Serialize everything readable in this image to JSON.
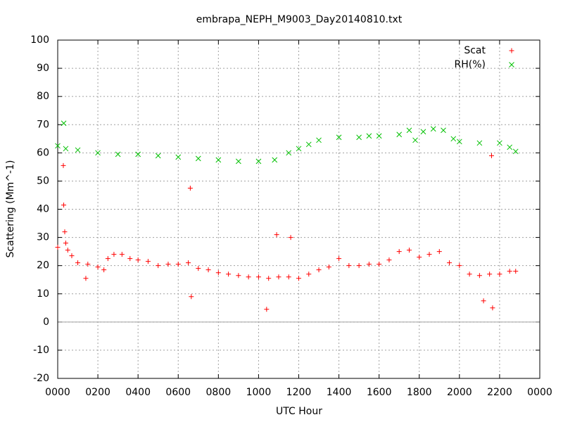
{
  "chart_data": {
    "type": "scatter",
    "title": "embrapa_NEPH_M9003_Day20140810.txt",
    "xlabel": "UTC Hour",
    "ylabel": "Scattering (Mm^-1)",
    "xlim": [
      0,
      24
    ],
    "xticks": [
      {
        "value": 0,
        "label": "0000"
      },
      {
        "value": 2,
        "label": "0200"
      },
      {
        "value": 4,
        "label": "0400"
      },
      {
        "value": 6,
        "label": "0600"
      },
      {
        "value": 8,
        "label": "0800"
      },
      {
        "value": 10,
        "label": "1000"
      },
      {
        "value": 12,
        "label": "1200"
      },
      {
        "value": 14,
        "label": "1400"
      },
      {
        "value": 16,
        "label": "1600"
      },
      {
        "value": 18,
        "label": "1800"
      },
      {
        "value": 20,
        "label": "2000"
      },
      {
        "value": 22,
        "label": "2200"
      },
      {
        "value": 24,
        "label": "0000"
      }
    ],
    "ylim": [
      -20,
      100
    ],
    "yticks": [
      -20,
      -10,
      0,
      10,
      20,
      30,
      40,
      50,
      60,
      70,
      80,
      90,
      100
    ],
    "grid": true,
    "zeroaxis": true,
    "legend": "top-right",
    "series": [
      {
        "name": "Scat",
        "color": "#ff0000",
        "marker": "plus",
        "x": [
          0,
          0.28,
          0.3,
          0.35,
          0.4,
          0.5,
          0.7,
          1,
          1.4,
          1.5,
          2,
          2.3,
          2.5,
          2.8,
          3.2,
          3.6,
          4,
          4.5,
          5,
          5.5,
          6,
          6.5,
          6.6,
          6.65,
          7,
          7.5,
          8,
          8.5,
          9,
          9.5,
          10,
          10.4,
          10.5,
          10.9,
          11,
          11.5,
          11.6,
          12,
          12.5,
          13,
          13.5,
          14,
          14.5,
          15,
          15.5,
          16,
          16.5,
          17,
          17.5,
          18,
          18.5,
          19,
          19.5,
          20,
          20.5,
          21,
          21.2,
          21.5,
          21.6,
          21.65,
          22,
          22.5,
          22.8
        ],
        "values": [
          26.5,
          55.5,
          41.5,
          32,
          28,
          25.5,
          23.5,
          21,
          15.5,
          20.5,
          19.5,
          18.5,
          22.5,
          24,
          24,
          22.5,
          22,
          21.5,
          20,
          20.5,
          20.5,
          21,
          47.5,
          9,
          19,
          18.5,
          17.5,
          17,
          16.5,
          16,
          16,
          4.5,
          15.5,
          31,
          16,
          16,
          30,
          15.5,
          17,
          18.5,
          19.5,
          22.5,
          20,
          20,
          20.5,
          20.5,
          22,
          25,
          25.5,
          23,
          24,
          25,
          21,
          20,
          17,
          16.5,
          7.5,
          17,
          59,
          5,
          17,
          18,
          18
        ]
      },
      {
        "name": "RH(%)",
        "color": "#00c000",
        "marker": "cross",
        "x": [
          0,
          0.3,
          0.4,
          1,
          2,
          3,
          4,
          5,
          6,
          7,
          8,
          9,
          10,
          10.8,
          11.5,
          12,
          12.5,
          13,
          14,
          15,
          15.5,
          16,
          17,
          17.5,
          17.8,
          18.2,
          18.7,
          19.2,
          19.7,
          20,
          21,
          22,
          22.5,
          22.8
        ],
        "values": [
          62.5,
          70.5,
          61.5,
          61,
          60,
          59.5,
          59.5,
          59,
          58.5,
          58,
          57.5,
          57,
          57,
          57.5,
          60,
          61.5,
          63,
          64.5,
          65.5,
          65.5,
          66,
          66,
          66.5,
          68,
          64.5,
          67.5,
          68.5,
          68,
          65,
          64,
          63.5,
          63.5,
          62,
          60.5
        ]
      }
    ]
  }
}
